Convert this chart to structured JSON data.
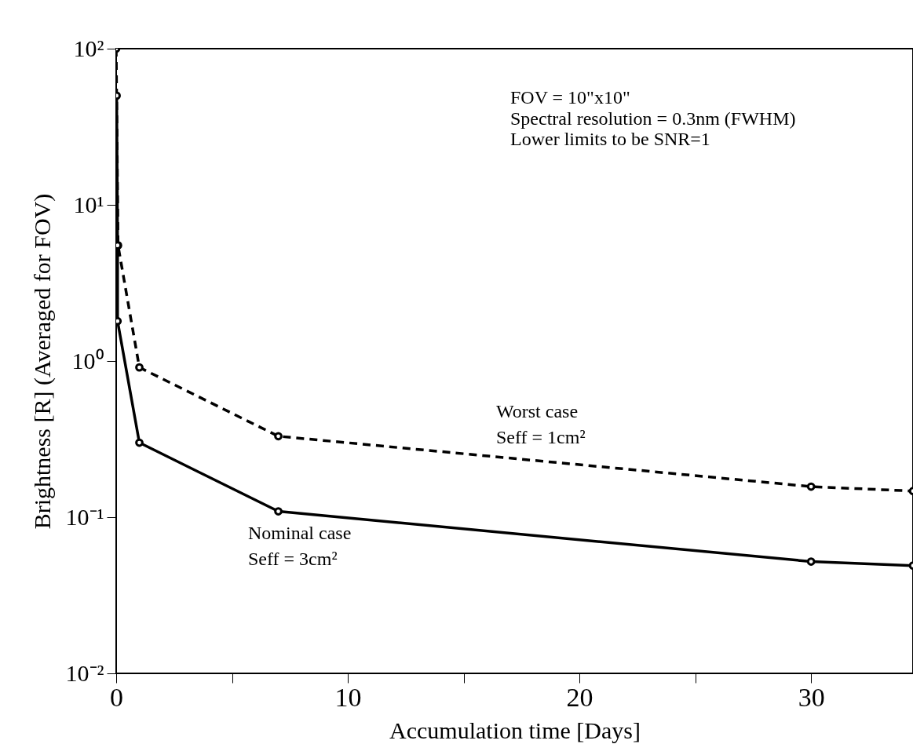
{
  "chart_data": {
    "type": "line",
    "xlabel": "Accumulation time [Days]",
    "ylabel": "Brightness [R] (Averaged for FOV)",
    "log": "y",
    "xlim": [
      0,
      34.4
    ],
    "ylim": [
      0.01,
      100
    ],
    "xticks": [
      0,
      {
        "value": 5,
        "label": null
      },
      10,
      {
        "value": 15,
        "label": null
      },
      20,
      {
        "value": 25,
        "label": null
      },
      30
    ],
    "yticks": [
      {
        "value": 0.01,
        "label": "10⁻²"
      },
      {
        "value": 0.1,
        "label": "10⁻¹"
      },
      {
        "value": 1,
        "label": "10⁰"
      },
      {
        "value": 10,
        "label": "10¹"
      },
      {
        "value": 100,
        "label": "10²"
      }
    ],
    "grid": false,
    "marker": "circle",
    "series": [
      {
        "color": "#000000",
        "line_style": "dashed",
        "x": [
          0,
          0.08,
          1,
          7,
          30,
          34.4
        ],
        "values": [
          100,
          5.5,
          0.91,
          0.33,
          0.157,
          0.147
        ]
      },
      {
        "color": "#000000",
        "line_style": "solid",
        "x": [
          0.02,
          0.06,
          0.06,
          1,
          7,
          30,
          34.4
        ],
        "values": [
          50,
          5.5,
          1.8,
          0.3,
          0.109,
          0.052,
          0.049
        ]
      }
    ],
    "annotations": [
      "FOV = 10\"x10\"",
      "Spectral resolution = 0.3nm (FWHM)",
      "Lower limits to be SNR=1",
      "Worst case",
      "Seff = 1cm²",
      "Nominal case",
      "Seff = 3cm²"
    ]
  }
}
